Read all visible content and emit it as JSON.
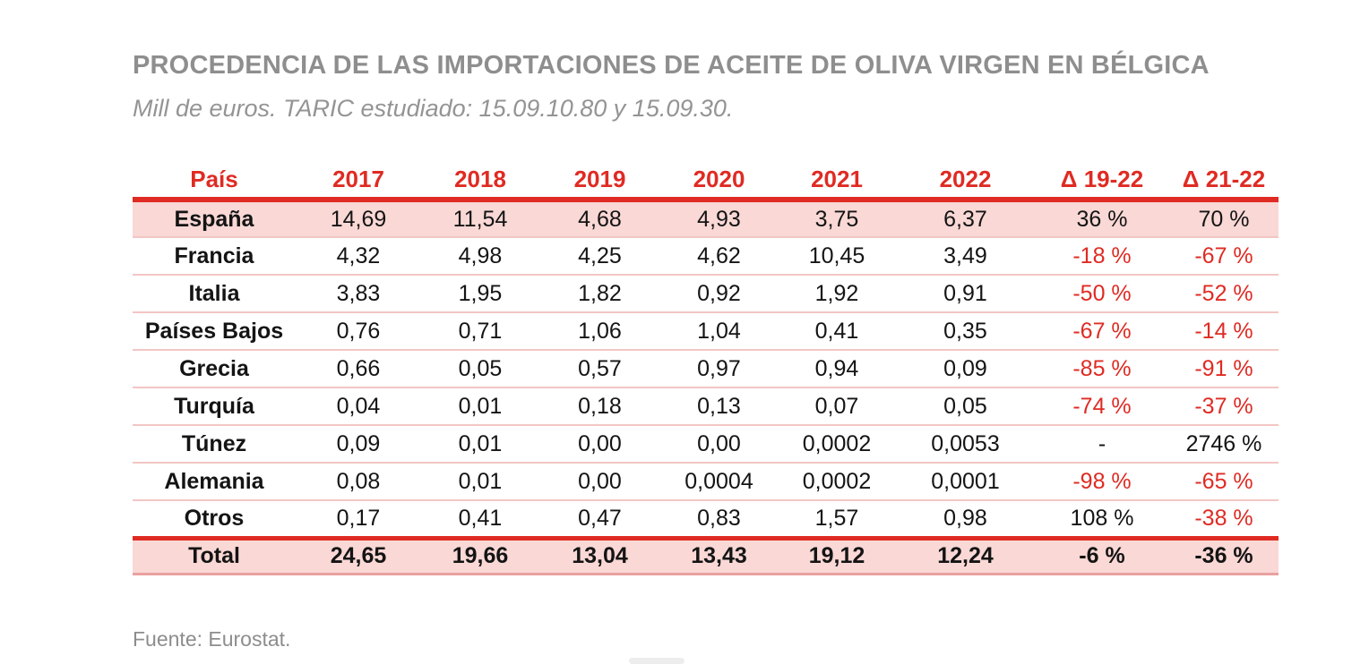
{
  "header": {
    "title": "PROCEDENCIA DE LAS IMPORTACIONES DE ACEITE DE OLIVA VIRGEN EN BÉLGICA",
    "subtitle": "Mill de euros. TARIC estudiado: 15.09.10.80 y 15.09.30."
  },
  "table": {
    "columns": [
      "País",
      "2017",
      "2018",
      "2019",
      "2020",
      "2021",
      "2022",
      "Δ 19-22",
      "Δ 21-22"
    ],
    "rows": [
      {
        "pais": "España",
        "values": [
          "14,69",
          "11,54",
          "4,68",
          "4,93",
          "3,75",
          "6,37"
        ],
        "d19_22": "36 %",
        "d21_22": "70 %",
        "d19_22_red": false,
        "d21_22_red": false,
        "highlight": true,
        "is_total": false
      },
      {
        "pais": "Francia",
        "values": [
          "4,32",
          "4,98",
          "4,25",
          "4,62",
          "10,45",
          "3,49"
        ],
        "d19_22": "-18 %",
        "d21_22": "-67 %",
        "d19_22_red": true,
        "d21_22_red": true,
        "highlight": false,
        "is_total": false
      },
      {
        "pais": "Italia",
        "values": [
          "3,83",
          "1,95",
          "1,82",
          "0,92",
          "1,92",
          "0,91"
        ],
        "d19_22": "-50 %",
        "d21_22": "-52 %",
        "d19_22_red": true,
        "d21_22_red": true,
        "highlight": false,
        "is_total": false
      },
      {
        "pais": "Países Bajos",
        "values": [
          "0,76",
          "0,71",
          "1,06",
          "1,04",
          "0,41",
          "0,35"
        ],
        "d19_22": "-67 %",
        "d21_22": "-14 %",
        "d19_22_red": true,
        "d21_22_red": true,
        "highlight": false,
        "is_total": false
      },
      {
        "pais": "Grecia",
        "values": [
          "0,66",
          "0,05",
          "0,57",
          "0,97",
          "0,94",
          "0,09"
        ],
        "d19_22": "-85 %",
        "d21_22": "-91 %",
        "d19_22_red": true,
        "d21_22_red": true,
        "highlight": false,
        "is_total": false
      },
      {
        "pais": "Turquía",
        "values": [
          "0,04",
          "0,01",
          "0,18",
          "0,13",
          "0,07",
          "0,05"
        ],
        "d19_22": "-74 %",
        "d21_22": "-37 %",
        "d19_22_red": true,
        "d21_22_red": true,
        "highlight": false,
        "is_total": false
      },
      {
        "pais": "Túnez",
        "values": [
          "0,09",
          "0,01",
          "0,00",
          "0,00",
          "0,0002",
          "0,0053"
        ],
        "d19_22": "-",
        "d21_22": "2746 %",
        "d19_22_red": false,
        "d21_22_red": false,
        "highlight": false,
        "is_total": false
      },
      {
        "pais": "Alemania",
        "values": [
          "0,08",
          "0,01",
          "0,00",
          "0,0004",
          "0,0002",
          "0,0001"
        ],
        "d19_22": "-98 %",
        "d21_22": "-65 %",
        "d19_22_red": true,
        "d21_22_red": true,
        "highlight": false,
        "is_total": false
      },
      {
        "pais": "Otros",
        "values": [
          "0,17",
          "0,41",
          "0,47",
          "0,83",
          "1,57",
          "0,98"
        ],
        "d19_22": "108 %",
        "d21_22": "-38 %",
        "d19_22_red": false,
        "d21_22_red": true,
        "highlight": false,
        "is_total": false
      },
      {
        "pais": "Total",
        "values": [
          "24,65",
          "19,66",
          "13,04",
          "13,43",
          "19,12",
          "12,24"
        ],
        "d19_22": "-6 %",
        "d21_22": "-36 %",
        "d19_22_red": false,
        "d21_22_red": false,
        "highlight": true,
        "is_total": true
      }
    ]
  },
  "footer": {
    "source": "Fuente: Eurostat."
  },
  "colors": {
    "accent_red": "#df2b23",
    "row_highlight_pink": "#f9d8d5",
    "separator_pink": "#f2c6c4",
    "table_bottom_pink": "#e9a19f",
    "title_gray": "#8e8e8e",
    "text_black": "#141414"
  }
}
